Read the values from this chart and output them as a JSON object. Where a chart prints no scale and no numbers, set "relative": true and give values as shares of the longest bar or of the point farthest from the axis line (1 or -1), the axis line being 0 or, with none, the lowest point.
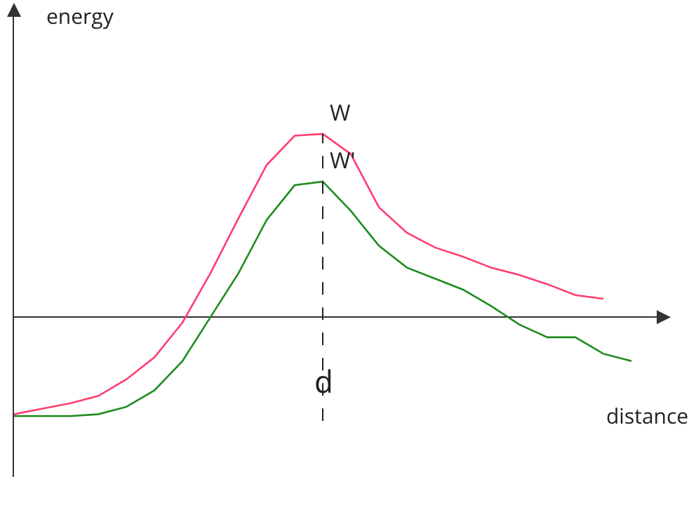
{
  "chart_data": {
    "type": "line",
    "relative": true,
    "xlabel": "distance",
    "ylabel": "energy",
    "categories": [
      null,
      null,
      null,
      null,
      null,
      null,
      null,
      null,
      null,
      null,
      null,
      null,
      null,
      null,
      null,
      null,
      null,
      null,
      null,
      null,
      null,
      null,
      null,
      null
    ],
    "series": [
      {
        "color": "#ff3d6e",
        "values": [
          -0.53,
          -0.5,
          -0.47,
          -0.43,
          -0.34,
          -0.22,
          -0.03,
          0.24,
          0.54,
          0.83,
          0.99,
          1,
          0.89,
          0.6,
          0.46,
          0.38,
          0.33,
          0.27,
          0.23,
          0.18,
          0.12,
          0.1,
          null,
          null
        ]
      },
      {
        "color": "#1e8c1e",
        "values": [
          -0.54,
          -0.54,
          -0.54,
          -0.53,
          -0.49,
          -0.4,
          -0.24,
          0,
          0.24,
          0.53,
          0.72,
          0.74,
          0.58,
          0.39,
          0.27,
          0.21,
          0.15,
          0.06,
          -0.04,
          -0.11,
          -0.11,
          -0.2,
          -0.24,
          null
        ]
      }
    ],
    "ref_lines": [
      {
        "axis": "x",
        "label": "d",
        "line_style": "dashed",
        "color": "#222222"
      }
    ],
    "annotations": [
      "W",
      "W'"
    ]
  }
}
